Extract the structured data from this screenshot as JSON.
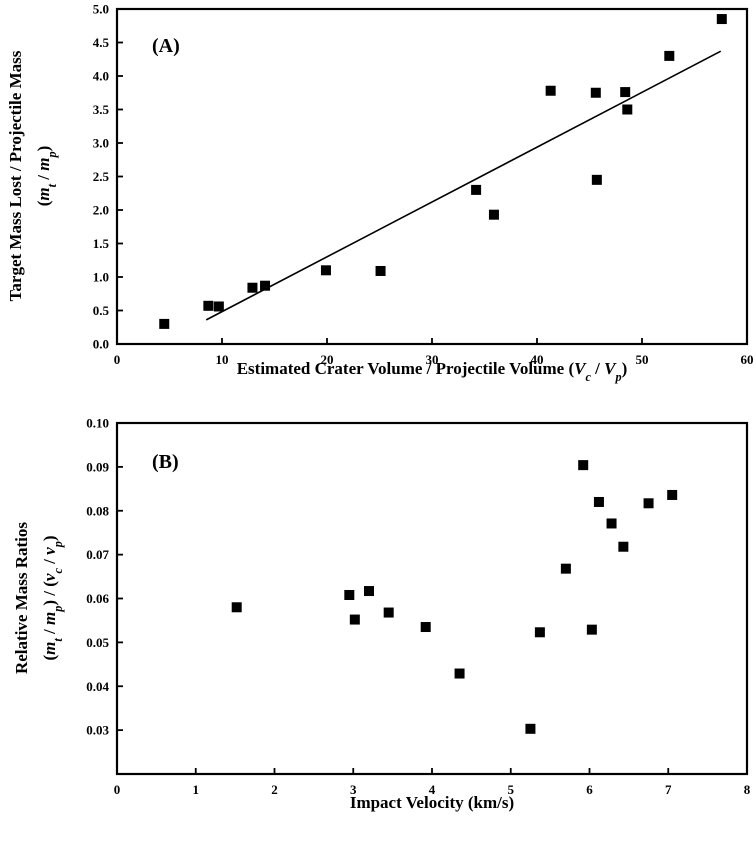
{
  "chart_data": [
    {
      "type": "scatter",
      "panel_label": "(A)",
      "xlabel": "Estimated Crater Volume / Projectile Volume (V_c / V_p)",
      "ylabel_line1": "Target Mass Lost / Projectile Mass",
      "ylabel_line2": "(m_t / m_p)",
      "xlim": [
        0,
        60
      ],
      "ylim": [
        0,
        5.0
      ],
      "x_ticks": [
        "0",
        "10",
        "20",
        "30",
        "40",
        "50",
        "60"
      ],
      "y_ticks": [
        "0.0",
        "0.5",
        "1.0",
        "1.5",
        "2.0",
        "2.5",
        "3.0",
        "3.5",
        "4.0",
        "4.5",
        "5.0"
      ],
      "grid": false,
      "series": [
        {
          "points": [
            {
              "x": 4.5,
              "y": 0.3
            },
            {
              "x": 8.7,
              "y": 0.57
            },
            {
              "x": 9.7,
              "y": 0.56
            },
            {
              "x": 12.9,
              "y": 0.84
            },
            {
              "x": 14.1,
              "y": 0.87
            },
            {
              "x": 19.9,
              "y": 1.1
            },
            {
              "x": 25.1,
              "y": 1.09
            },
            {
              "x": 34.2,
              "y": 2.3
            },
            {
              "x": 35.9,
              "y": 1.93
            },
            {
              "x": 41.3,
              "y": 3.78
            },
            {
              "x": 45.6,
              "y": 3.75
            },
            {
              "x": 45.7,
              "y": 2.45
            },
            {
              "x": 48.4,
              "y": 3.76
            },
            {
              "x": 48.6,
              "y": 3.5
            },
            {
              "x": 52.6,
              "y": 4.3
            },
            {
              "x": 57.6,
              "y": 4.85
            }
          ]
        }
      ],
      "fit_line": {
        "x": [
          8.5,
          57.5
        ],
        "y": [
          0.36,
          4.37
        ]
      }
    },
    {
      "type": "scatter",
      "panel_label": "(B)",
      "xlabel": "Impact Velocity (km/s)",
      "ylabel_line1": "Relative Mass Ratios",
      "ylabel_line2": "(m_t / m_p) / (v_c / v_p)",
      "xlim": [
        0,
        8
      ],
      "ylim": [
        0.02,
        0.1
      ],
      "x_ticks": [
        "0",
        "1",
        "2",
        "3",
        "4",
        "5",
        "6",
        "7",
        "8"
      ],
      "y_ticks": [
        "0.03",
        "0.04",
        "0.05",
        "0.06",
        "0.07",
        "0.08",
        "0.09",
        "0.10"
      ],
      "grid": false,
      "series": [
        {
          "points": [
            {
              "x": 1.52,
              "y": 0.058
            },
            {
              "x": 2.95,
              "y": 0.0608
            },
            {
              "x": 3.02,
              "y": 0.0552
            },
            {
              "x": 3.2,
              "y": 0.0617
            },
            {
              "x": 3.45,
              "y": 0.0568
            },
            {
              "x": 3.92,
              "y": 0.0535
            },
            {
              "x": 4.35,
              "y": 0.0429
            },
            {
              "x": 5.25,
              "y": 0.0303
            },
            {
              "x": 5.37,
              "y": 0.0523
            },
            {
              "x": 5.7,
              "y": 0.0668
            },
            {
              "x": 5.92,
              "y": 0.0904
            },
            {
              "x": 6.03,
              "y": 0.0529
            },
            {
              "x": 6.12,
              "y": 0.082
            },
            {
              "x": 6.28,
              "y": 0.0771
            },
            {
              "x": 6.43,
              "y": 0.0718
            },
            {
              "x": 6.75,
              "y": 0.0817
            },
            {
              "x": 7.05,
              "y": 0.0836
            }
          ]
        }
      ]
    }
  ]
}
